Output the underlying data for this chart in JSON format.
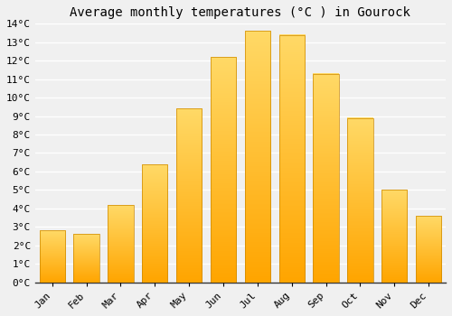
{
  "months": [
    "Jan",
    "Feb",
    "Mar",
    "Apr",
    "May",
    "Jun",
    "Jul",
    "Aug",
    "Sep",
    "Oct",
    "Nov",
    "Dec"
  ],
  "values": [
    2.8,
    2.6,
    4.2,
    6.4,
    9.4,
    12.2,
    13.6,
    13.4,
    11.3,
    8.9,
    5.0,
    3.6
  ],
  "bar_color": "#FFA500",
  "bar_edge_color": "#FF8C00",
  "title": "Average monthly temperatures (°C ) in Gourock",
  "ylim": [
    0,
    14
  ],
  "ytick_step": 1,
  "background_color": "#f0f0f0",
  "plot_bg_color": "#f0f0f0",
  "grid_color": "#ffffff",
  "title_fontsize": 10,
  "tick_fontsize": 8,
  "font_family": "monospace",
  "bar_width": 0.75
}
